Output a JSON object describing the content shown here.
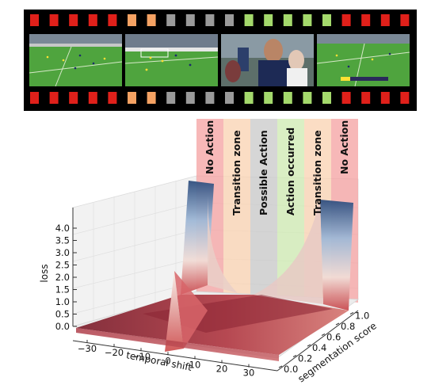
{
  "filmstrip": {
    "top_hole_colors": [
      "#e0201a",
      "#e0201a",
      "#e0201a",
      "#e0201a",
      "#e0201a",
      "#f5a263",
      "#f5a263",
      "#9a9a9a",
      "#9a9a9a",
      "#9a9a9a",
      "#9a9a9a",
      "#a4d96c",
      "#a4d96c",
      "#a4d96c",
      "#a4d96c",
      "#a4d96c",
      "#e0201a",
      "#e0201a",
      "#e0201a",
      "#e0201a"
    ],
    "bottom_hole_colors": [
      "#e0201a",
      "#e0201a",
      "#e0201a",
      "#e0201a",
      "#e0201a",
      "#f5a263",
      "#f5a263",
      "#9a9a9a",
      "#9a9a9a",
      "#9a9a9a",
      "#9a9a9a",
      "#a4d96c",
      "#a4d96c",
      "#a4d96c",
      "#a4d96c",
      "#a4d96c",
      "#e0201a",
      "#e0201a",
      "#e0201a",
      "#e0201a"
    ],
    "frames": [
      {
        "content": "soccer-wide-shot"
      },
      {
        "content": "soccer-goalmouth"
      },
      {
        "content": "player-celebration-closeup"
      },
      {
        "content": "soccer-wide-shot-scoreboard"
      }
    ]
  },
  "zones": [
    {
      "label": "No Action",
      "color": "#f4a0a0"
    },
    {
      "label": "Transition zone",
      "color": "#f9d2b0"
    },
    {
      "label": "Possible Action",
      "color": "#c8c8c8"
    },
    {
      "label": "Action occurred",
      "color": "#cde9b0"
    },
    {
      "label": "Transition zone",
      "color": "#f9d2b0"
    },
    {
      "label": "No Action",
      "color": "#f4a0a0"
    }
  ],
  "axes": {
    "x_title": "temporal shift",
    "y_title": "segmentation score",
    "z_title": "loss",
    "x_ticks": [
      "−30",
      "−20",
      "−10",
      "0",
      "10",
      "20",
      "30"
    ],
    "y_ticks": [
      "0.0",
      "0.2",
      "0.4",
      "0.6",
      "0.8",
      "1.0"
    ],
    "z_ticks": [
      "0.0",
      "0.5",
      "1.0",
      "1.5",
      "2.0",
      "2.5",
      "3.0",
      "3.5",
      "4.0"
    ]
  }
}
